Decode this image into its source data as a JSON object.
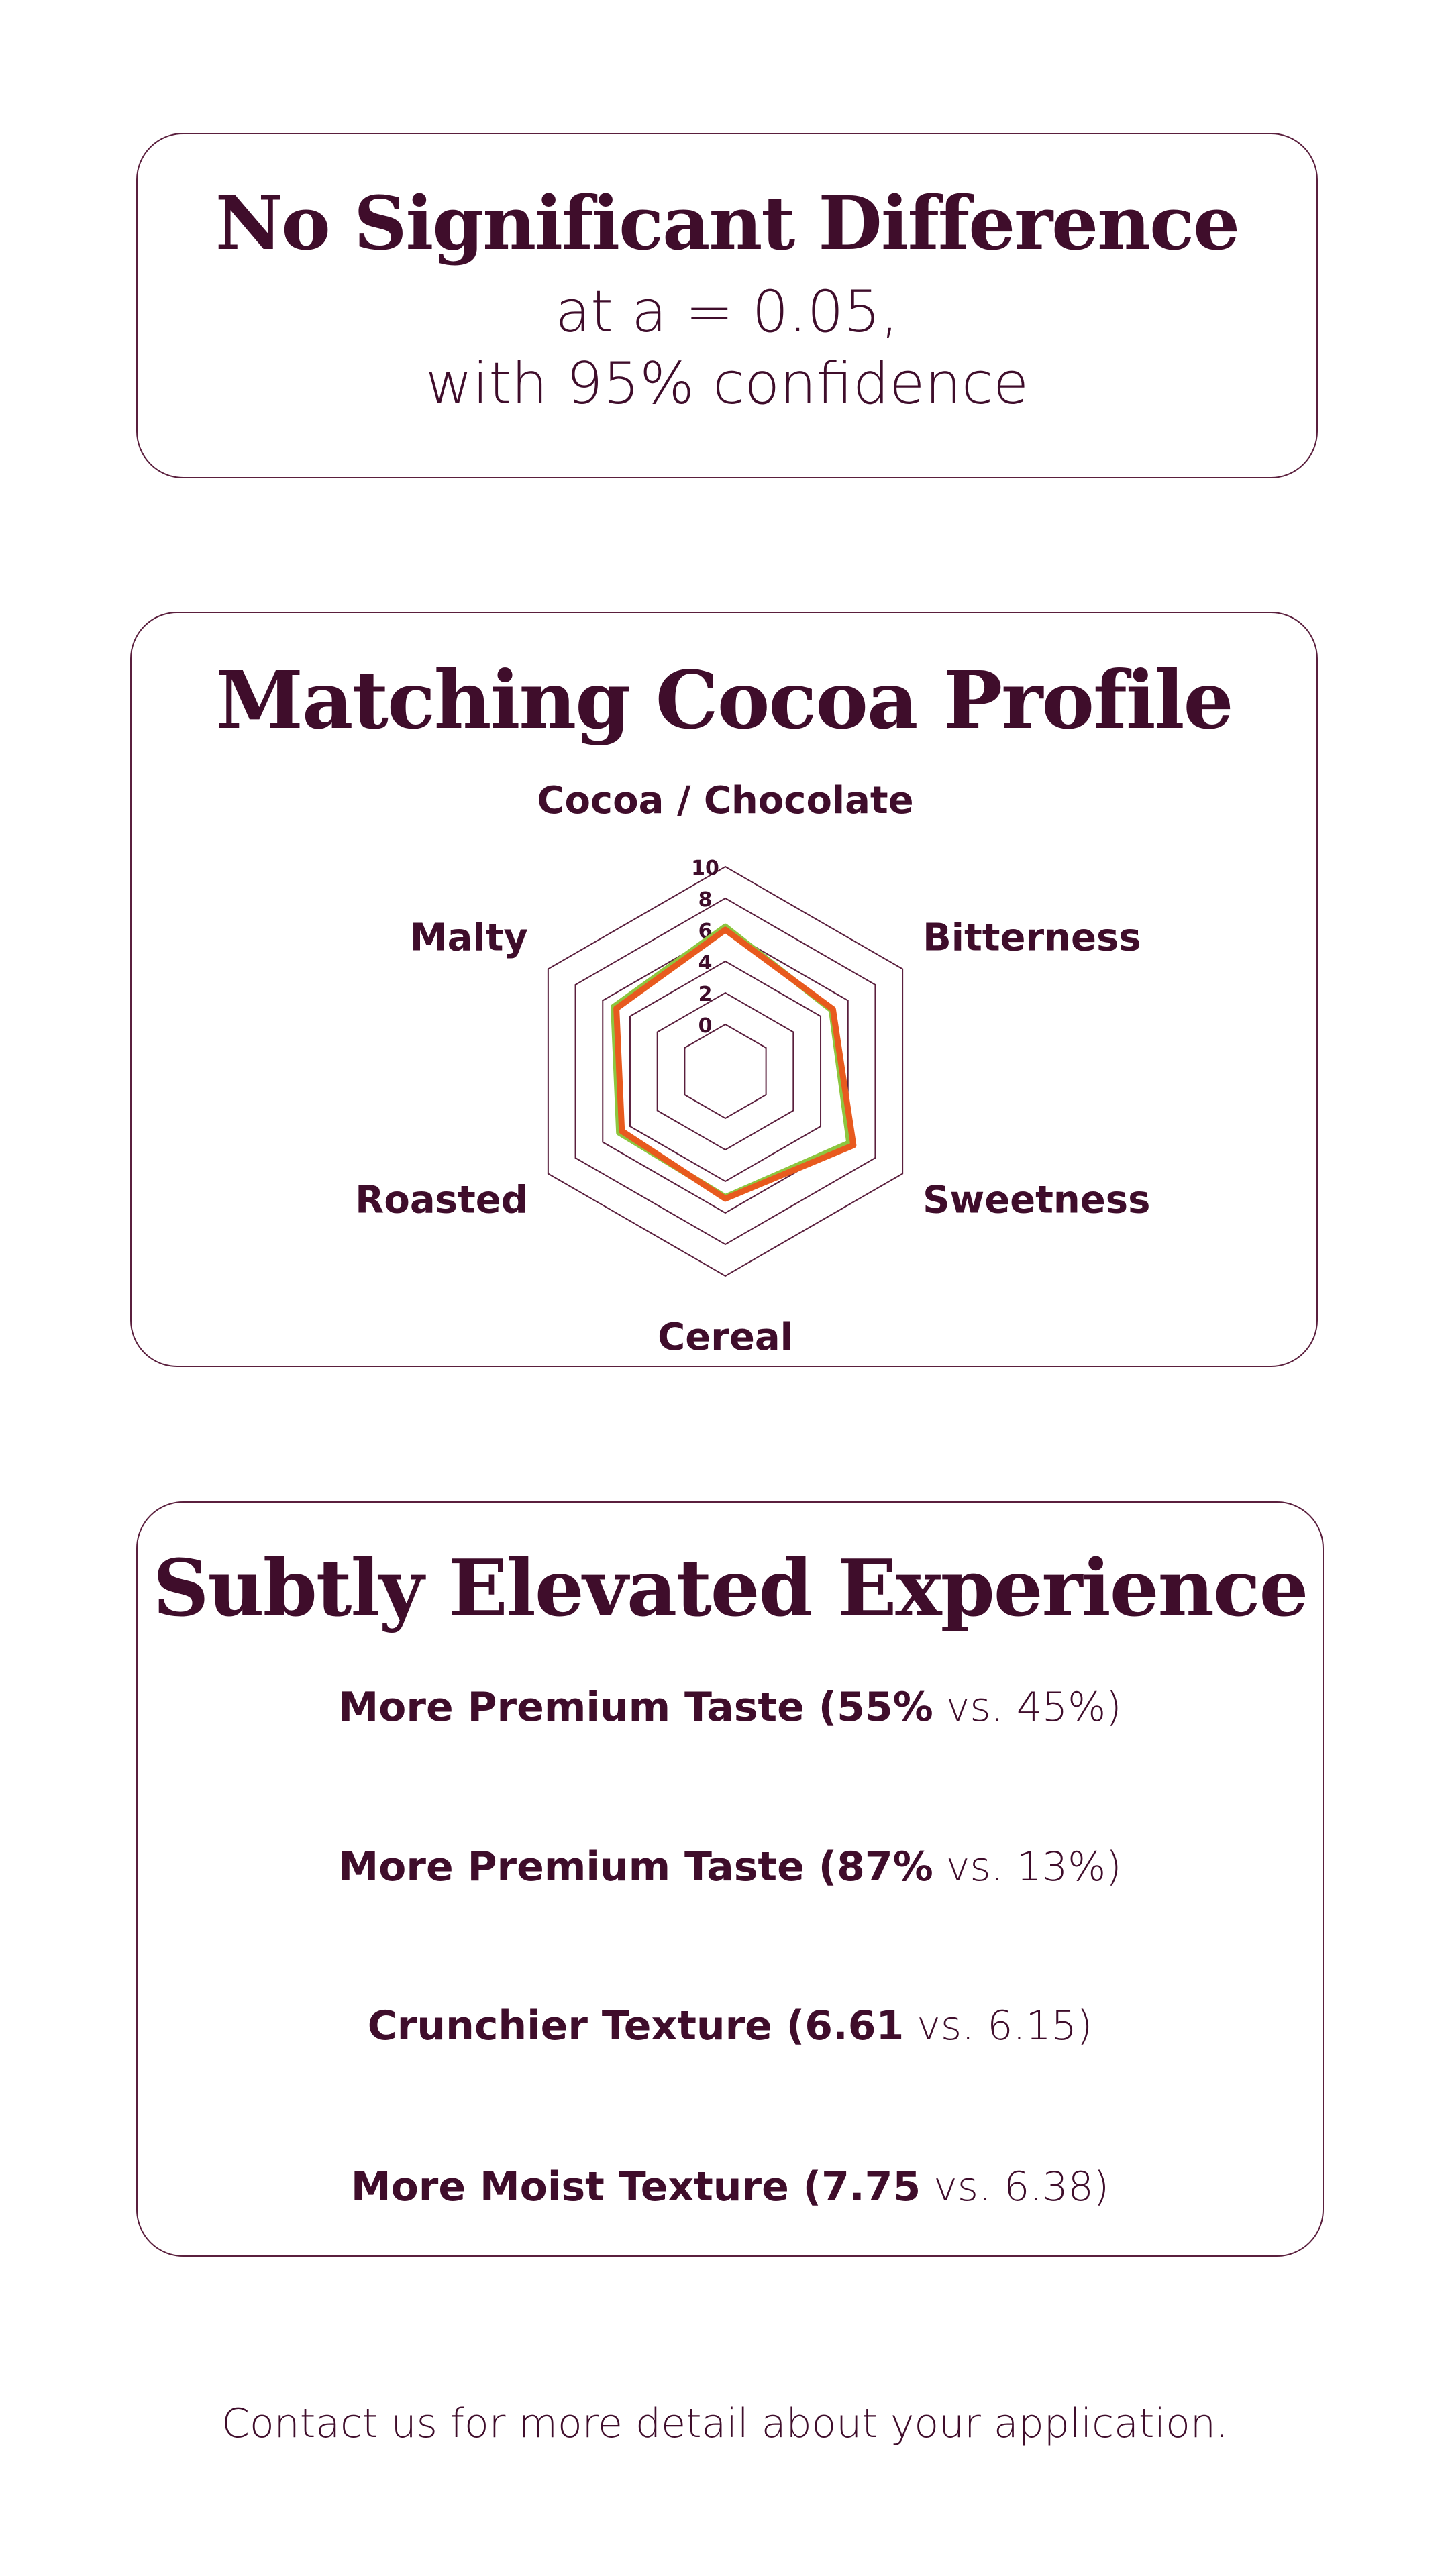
{
  "card1": {
    "title": "No Significant Difference",
    "line1": "at a = 0.05,",
    "line2": "with 95% confidence"
  },
  "card2": {
    "title": "Matching Cocoa Profile"
  },
  "card3": {
    "title": "Subtly Elevated Experience",
    "stats": [
      {
        "label": "More Premium Taste (",
        "bold_value": "55%",
        "rest": " vs. 45%)"
      },
      {
        "label": "More Premium Taste (",
        "bold_value": "87%",
        "rest": " vs. 13%)"
      },
      {
        "label": "Crunchier Texture (",
        "bold_value": "6.61",
        "rest": " vs. 6.15)"
      },
      {
        "label": "More Moist Texture (",
        "bold_value": "7.75",
        "rest": " vs. 6.38)"
      }
    ]
  },
  "footer": "Contact us for more detail about your application.",
  "chart_data": {
    "type": "radar",
    "title": "",
    "axes": [
      "Cocoa / Chocolate",
      "Bitterness",
      "Sweetness",
      "Cereal",
      "Roasted",
      "Malty"
    ],
    "range": [
      0,
      10
    ],
    "ticks": [
      0,
      2,
      4,
      6,
      8,
      10
    ],
    "grid": true,
    "series": [
      {
        "values": [
          6.2,
          4.8,
          6.1,
          5.0,
          4.8,
          5.2
        ],
        "color": "#8dc63f"
      },
      {
        "values": [
          6.0,
          4.9,
          6.4,
          5.1,
          4.6,
          5.0
        ],
        "color": "#e85a1e"
      }
    ],
    "colors": {
      "grid": "#5a1f3d",
      "label": "#3f0d2b"
    }
  }
}
